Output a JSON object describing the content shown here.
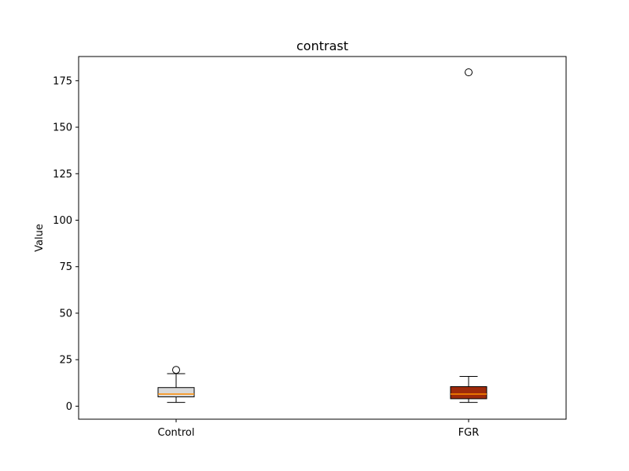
{
  "chart_data": {
    "type": "box",
    "title": "contrast",
    "xlabel": "",
    "ylabel": "Value",
    "ylim": [
      -7,
      188
    ],
    "yticks": [
      0,
      25,
      50,
      75,
      100,
      125,
      150,
      175
    ],
    "grid": false,
    "categories": [
      "Control",
      "FGR"
    ],
    "boxes": [
      {
        "category": "Control",
        "whisker_low": 2,
        "q1": 5,
        "median": 6.5,
        "q3": 10,
        "whisker_high": 17.5,
        "outliers": [
          19.5
        ],
        "color": "#d9d9d9"
      },
      {
        "category": "FGR",
        "whisker_low": 2,
        "q1": 4,
        "median": 6.5,
        "q3": 10.5,
        "whisker_high": 16,
        "outliers": [
          179.5
        ],
        "color": "#9e2a0b"
      }
    ],
    "median_color": "#ff8c00"
  }
}
